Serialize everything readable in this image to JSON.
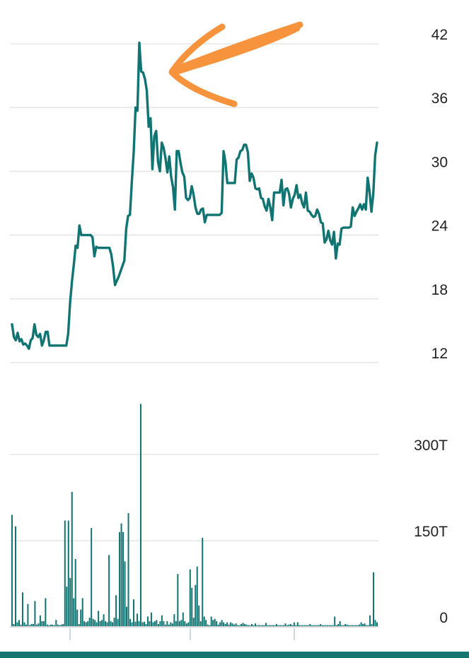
{
  "colors": {
    "line": "#0f7472",
    "bar": "#0f7472",
    "annotation": "#f7933c",
    "bottom_bar": "#147670"
  },
  "annotations": [
    {
      "type": "hand-drawn-arrow",
      "color": "#f7933c",
      "points_to": "price peak"
    }
  ],
  "chart_data": [
    {
      "type": "line",
      "ylim": [
        12,
        42
      ],
      "yticks": [
        12,
        18,
        24,
        30,
        36,
        42
      ],
      "ytick_labels": [
        "12",
        "18",
        "24",
        "30",
        "36",
        "42"
      ],
      "grid": true,
      "y": [
        15.6,
        14.4,
        14.1,
        14.8,
        14.0,
        14.2,
        13.7,
        13.8,
        13.6,
        13.3,
        14.1,
        14.3,
        15.6,
        14.6,
        14.4,
        14.7,
        13.6,
        14.1,
        14.9,
        14.9,
        13.6,
        13.6,
        13.6,
        13.6,
        13.6,
        13.6,
        13.6,
        13.6,
        13.6,
        13.6,
        14.7,
        17.6,
        19.6,
        21.2,
        23.0,
        22.8,
        24.9,
        24.0,
        24.0,
        24.0,
        24.0,
        24.0,
        24.0,
        23.8,
        22.0,
        22.9,
        22.8,
        22.8,
        22.8,
        22.8,
        22.8,
        22.8,
        22.8,
        22.2,
        21.0,
        19.3,
        19.7,
        20.1,
        20.6,
        21.1,
        21.6,
        24.6,
        25.8,
        25.9,
        29.0,
        31.8,
        36.0,
        35.7,
        42.1,
        39.4,
        39.3,
        38.7,
        37.6,
        34.2,
        35.0,
        30.2,
        33.3,
        33.8,
        30.9,
        30.0,
        32.7,
        32.2,
        31.2,
        29.9,
        31.4,
        29.5,
        28.5,
        26.4,
        31.9,
        31.9,
        30.8,
        29.9,
        29.5,
        27.5,
        27.3,
        27.5,
        28.6,
        27.8,
        26.6,
        26.0,
        26.0,
        26.4,
        26.5,
        25.2,
        25.9,
        25.9,
        25.9,
        25.9,
        25.9,
        25.9,
        25.9,
        25.9,
        26.1,
        31.9,
        30.9,
        28.9,
        28.9,
        28.9,
        28.9,
        28.9,
        31.1,
        31.3,
        31.9,
        32.0,
        32.5,
        32.5,
        31.8,
        29.1,
        29.8,
        29.4,
        28.4,
        28.3,
        28.4,
        27.5,
        27.4,
        26.7,
        26.3,
        27.4,
        26.6,
        25.4,
        28.0,
        28.0,
        28.0,
        28.0,
        29.2,
        26.8,
        28.3,
        28.4,
        27.9,
        26.6,
        27.4,
        27.8,
        28.7,
        27.5,
        27.8,
        27.0,
        26.6,
        28.0,
        26.3,
        26.2,
        25.9,
        25.7,
        25.8,
        26.4,
        26.0,
        25.2,
        25.1,
        23.3,
        23.6,
        24.4,
        23.5,
        23.1,
        24.3,
        21.8,
        23.2,
        23.1,
        24.6,
        24.7,
        24.7,
        24.7,
        24.7,
        24.8,
        26.6,
        25.8,
        26.2,
        26.5,
        26.9,
        26.4,
        26.9,
        26.4,
        29.4,
        28.1,
        26.2,
        27.9,
        31.5,
        32.7
      ]
    },
    {
      "type": "bar",
      "ylim": [
        0,
        350
      ],
      "yticks": [
        0,
        150,
        300
      ],
      "ytick_labels": [
        "0",
        "150T",
        "300T"
      ],
      "grid": true,
      "values": [
        195,
        5,
        175,
        8,
        12,
        4,
        60,
        8,
        4,
        40,
        3,
        5,
        5,
        45,
        4,
        6,
        20,
        10,
        10,
        50,
        4,
        3,
        4,
        4,
        3,
        12,
        4,
        3,
        4,
        5,
        185,
        70,
        185,
        85,
        235,
        50,
        118,
        30,
        5,
        30,
        50,
        10,
        8,
        10,
        16,
        172,
        14,
        12,
        8,
        28,
        10,
        12,
        22,
        10,
        8,
        125,
        10,
        8,
        16,
        55,
        14,
        165,
        180,
        165,
        114,
        35,
        198,
        14,
        8,
        48,
        9,
        23,
        10,
        388,
        8,
        9,
        5,
        18,
        10,
        25,
        8,
        10,
        12,
        5,
        10,
        20,
        10,
        4,
        10,
        4,
        8,
        6,
        22,
        10,
        92,
        10,
        12,
        25,
        10,
        6,
        8,
        100,
        68,
        16,
        73,
        105,
        37,
        10,
        155,
        18,
        12,
        4,
        3,
        18,
        12,
        14,
        10,
        4,
        8,
        12,
        8,
        5,
        8,
        4,
        8,
        6,
        4,
        6,
        3,
        3,
        5,
        7,
        5,
        4,
        3,
        3,
        5,
        3,
        6,
        3,
        3,
        3,
        3,
        3,
        7,
        3,
        3,
        3,
        3,
        3,
        5,
        3,
        3,
        3,
        3,
        6,
        3,
        4,
        5,
        3,
        8,
        3,
        8,
        3,
        3,
        3,
        3,
        3,
        3,
        5,
        3,
        3,
        3,
        3,
        3,
        5,
        3,
        3,
        3,
        3,
        3,
        3,
        3,
        18,
        3,
        5,
        10,
        3,
        3,
        5,
        4,
        3,
        3,
        3,
        3,
        3,
        3,
        4,
        8,
        5,
        6,
        3,
        3,
        20,
        5,
        95,
        12,
        8
      ]
    }
  ]
}
